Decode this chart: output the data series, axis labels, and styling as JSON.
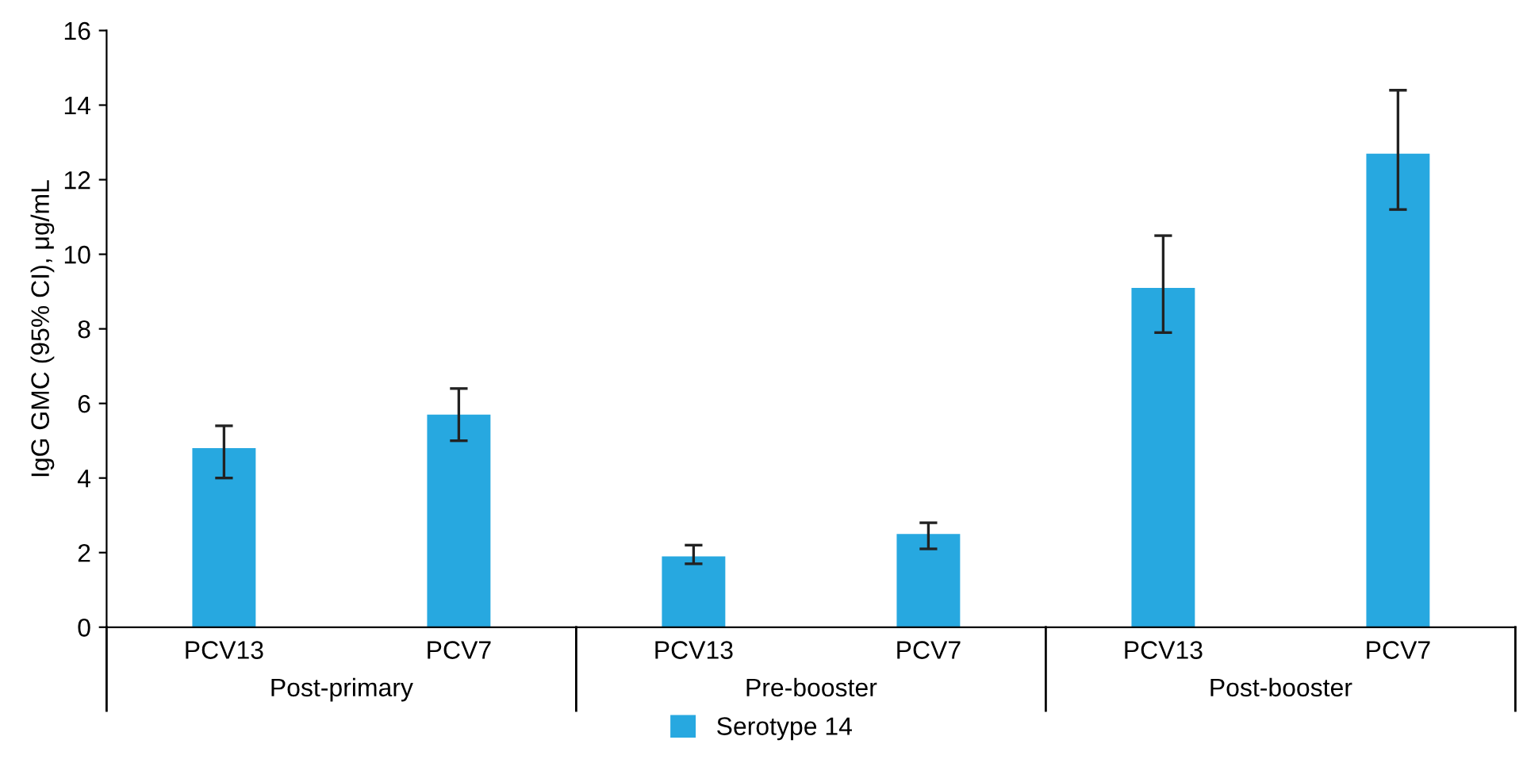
{
  "chart_data": {
    "type": "bar",
    "ylabel": "IgG GMC (95% CI), μg/mL",
    "categories": [
      "PCV13",
      "PCV7",
      "PCV13",
      "PCV7",
      "PCV13",
      "PCV7"
    ],
    "series": [
      {
        "name": "Serotype 14",
        "color": "#27a8e0",
        "values": [
          4.8,
          5.7,
          1.9,
          2.5,
          9.1,
          12.7
        ],
        "errors": [
          [
            4.0,
            5.4
          ],
          [
            5.0,
            6.4
          ],
          [
            1.7,
            2.2
          ],
          [
            2.1,
            2.8
          ],
          [
            7.9,
            10.5
          ],
          [
            11.2,
            14.4
          ]
        ]
      }
    ],
    "annotations": [
      "Post-primary",
      "Pre-booster",
      "Post-booster"
    ],
    "ylim": [
      0,
      16
    ],
    "yticks": [
      0,
      2,
      4,
      6,
      8,
      10,
      12,
      14,
      16
    ],
    "grid": false,
    "legend": "bottom"
  }
}
